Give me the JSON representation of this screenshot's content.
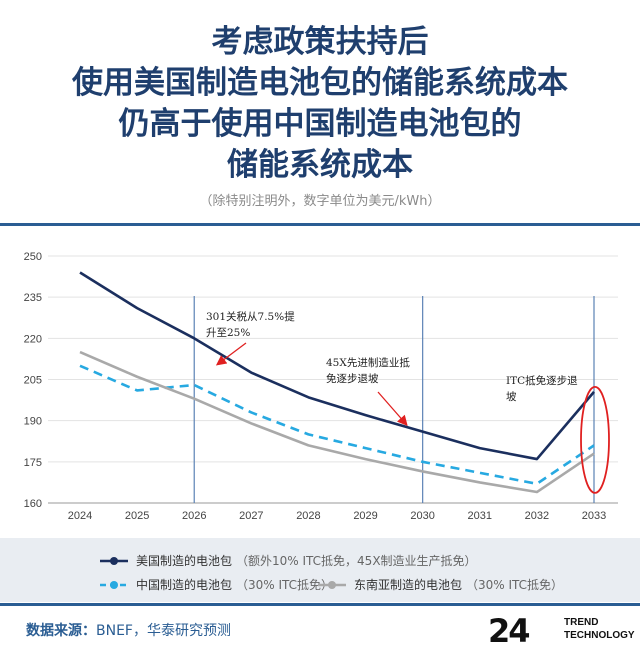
{
  "title_lines": [
    "考虑政策扶持后",
    "使用美国制造电池包的储能系统成本",
    "仍高于使用中国制造电池包的",
    "储能系统成本"
  ],
  "subtitle": "（除特别注明外，数字单位为美元/kWh）",
  "source": {
    "label": "数据来源：",
    "text": "BNEF，华泰研究预测"
  },
  "logo": {
    "number": "24",
    "line1": "TREND",
    "line2": "TECHNOLOGY"
  },
  "chart_data": {
    "type": "line",
    "title": "",
    "xlabel": "",
    "ylabel": "",
    "x": [
      "2024",
      "2025",
      "2026",
      "2027",
      "2028",
      "2029",
      "2030",
      "2031",
      "2032",
      "2033"
    ],
    "ylim": [
      160,
      250
    ],
    "yticks": [
      160,
      175,
      190,
      205,
      220,
      235,
      250
    ],
    "grid": true,
    "series": [
      {
        "name": "美国制造的电池包",
        "note": "（额外10% ITC抵免，45X制造业生产抵免）",
        "color": "#1b2f5e",
        "style": "solid",
        "values": [
          244,
          231,
          220,
          207.5,
          198.5,
          192,
          186,
          180,
          176,
          200.5
        ]
      },
      {
        "name": "中国制造的电池包",
        "note": "（30% ITC抵免）",
        "color": "#27a9e1",
        "style": "dashed",
        "values": [
          210,
          201,
          203,
          193,
          185,
          180,
          175,
          171,
          167,
          181
        ]
      },
      {
        "name": "东南亚制造的电池包",
        "note": "（30% ITC抵免）",
        "color": "#a9a9a9",
        "style": "solid",
        "values": [
          215,
          206,
          198,
          189,
          181,
          176,
          171.5,
          167.5,
          164,
          178
        ]
      }
    ],
    "vlines": [
      "2026",
      "2030",
      "2033"
    ],
    "annotations": [
      {
        "lines": [
          "301关税从7.5%提",
          "升至25%"
        ],
        "at": "2026"
      },
      {
        "lines": [
          "45X先进制造业抵",
          "免逐步退坡"
        ],
        "at": "2030"
      },
      {
        "lines": [
          "ITC抵免逐步退",
          "坡"
        ],
        "at": "2033"
      }
    ]
  }
}
